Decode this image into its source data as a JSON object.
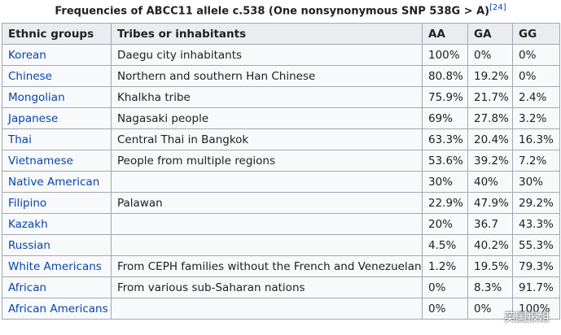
{
  "caption": {
    "title": "Frequencies of ABCC11 allele c.538 (One nonsynonymous SNP 538G > A)",
    "ref": "[24]"
  },
  "table": {
    "header": [
      "Ethnic groups",
      "Tribes or inhabitants",
      "AA",
      "GA",
      "GG"
    ],
    "rows": [
      [
        "Korean",
        "Daegu city inhabitants",
        "100%",
        "0%",
        "0%"
      ],
      [
        "Chinese",
        "Northern and southern Han Chinese",
        "80.8%",
        "19.2%",
        "0%"
      ],
      [
        "Mongolian",
        "Khalkha tribe",
        "75.9%",
        "21.7%",
        "2.4%"
      ],
      [
        "Japanese",
        "Nagasaki people",
        "69%",
        "27.8%",
        "3.2%"
      ],
      [
        "Thai",
        "Central Thai in Bangkok",
        "63.3%",
        "20.4%",
        "16.3%"
      ],
      [
        "Vietnamese",
        "People from multiple regions",
        "53.6%",
        "39.2%",
        "7.2%"
      ],
      [
        "Native American",
        null,
        "30%",
        "40%",
        "30%"
      ],
      [
        "Filipino",
        "Palawan",
        "22.9%",
        "47.9%",
        "29.2%"
      ],
      [
        "Kazakh",
        null,
        "20%",
        "36.7",
        "43.3%"
      ],
      [
        "Russian",
        null,
        "4.5%",
        "40.2%",
        "55.3%"
      ],
      [
        "White Americans",
        "From CEPH families without the French and Venezuelans",
        "1.2%",
        "19.5%",
        "79.3%"
      ],
      [
        "African",
        "From various sub-Saharan nations",
        "0%",
        "8.3%",
        "91.7%"
      ],
      [
        "African Americans",
        null,
        "0%",
        "0%",
        "100%"
      ]
    ]
  },
  "watermark": "英国报姐"
}
